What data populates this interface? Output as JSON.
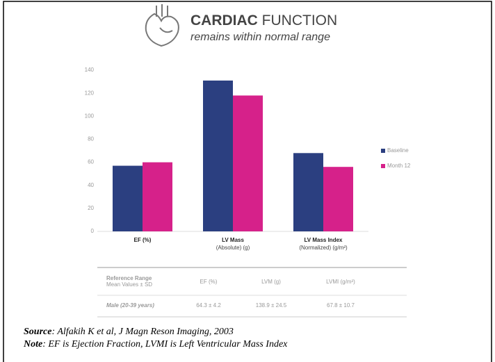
{
  "header": {
    "title_bold": "CARDIAC",
    "title_rest": "FUNCTION",
    "subtitle": "remains within normal range"
  },
  "chart_data": {
    "type": "bar",
    "categories": [
      "EF (%)",
      "LV Mass",
      "LV Mass Index"
    ],
    "category_sublabels": {
      "1": "(Absolute) (g)",
      "2": "(Normalized) (g/m²)"
    },
    "series": [
      {
        "name": "Baseline",
        "color": "#2b3f80",
        "values": [
          57,
          131,
          68
        ]
      },
      {
        "name": "Month 12",
        "color": "#d6218a",
        "values": [
          60,
          118,
          56
        ]
      }
    ],
    "ylim": [
      0,
      140
    ],
    "yticks": [
      0,
      20,
      40,
      60,
      80,
      100,
      120,
      140
    ],
    "grid": false,
    "legend": "right"
  },
  "table": {
    "header": {
      "label": "Reference Range",
      "sublabel": "Mean Values ± SD",
      "cells": [
        "EF (%)",
        "LVM (g)",
        "LVMI (g/m²)"
      ]
    },
    "rows": [
      [
        "Male (20-39 years)",
        "64.3 ± 4.2",
        "138.9 ± 24.5",
        "67.8 ± 10.7"
      ]
    ]
  },
  "footer": {
    "source_label": "Source",
    "source": ": Alfakih K et al, J Magn Reson Imaging, 2003",
    "note_label": "Note",
    "note": ": EF is Ejection Fraction, LVMI is Left Ventricular Mass Index"
  }
}
